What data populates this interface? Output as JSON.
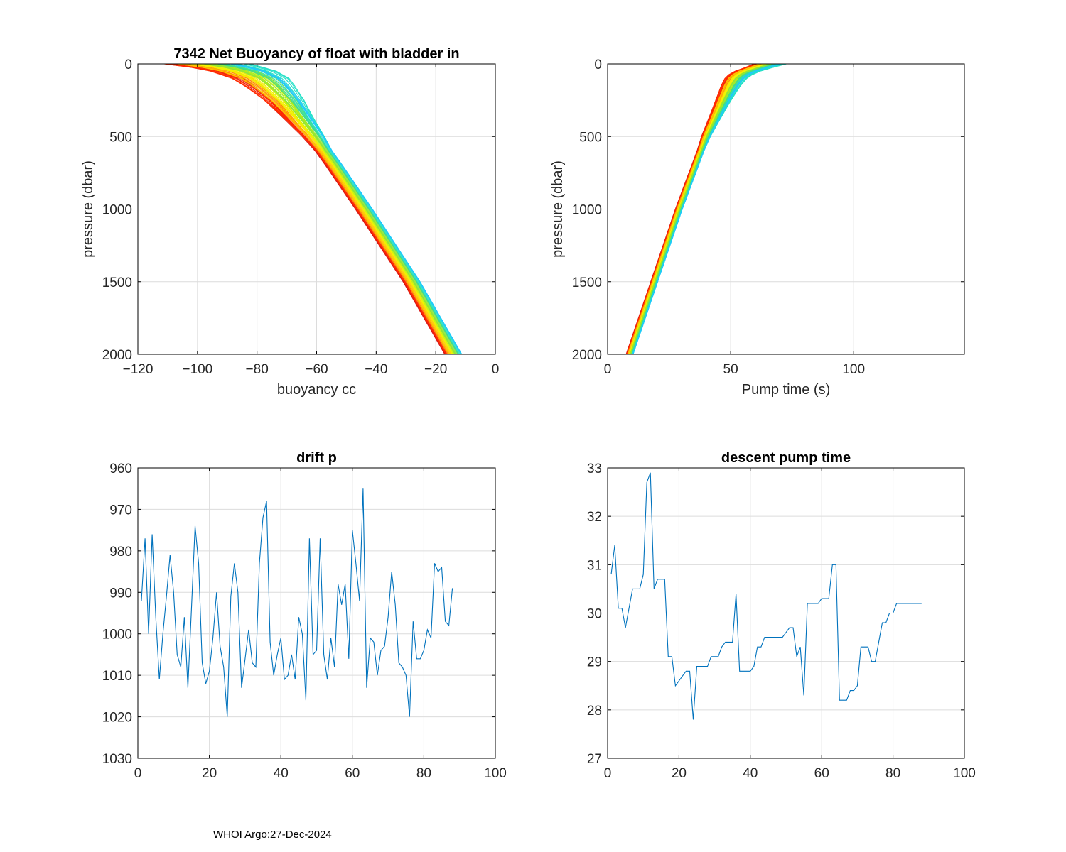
{
  "footer": "WHOI Argo:27-Dec-2024",
  "palette": {
    "trace_colors": [
      "#d40000",
      "#ff2a00",
      "#ff7b00",
      "#ffc400",
      "#f2f200",
      "#c4f000",
      "#8ee63a",
      "#3fdc8e",
      "#23e0c8",
      "#1fc8ff"
    ],
    "series_line": "#0072bd",
    "grid": "#dcdcdc",
    "axis": "#000000"
  },
  "chart_data": [
    {
      "id": "buoyancy",
      "type": "line",
      "title": "7342 Net Buoyancy of float with bladder in",
      "xlabel": "buoyancy cc",
      "ylabel": "pressure (dbar)",
      "xlim": [
        -120,
        0
      ],
      "ylim": [
        0,
        2000
      ],
      "y_reversed": true,
      "x_ticks": [
        -120,
        -100,
        -80,
        -60,
        -40,
        -20,
        0
      ],
      "y_ticks": [
        0,
        500,
        1000,
        1500,
        2000
      ],
      "grid": true,
      "profile_count": 88,
      "pressure": [
        0,
        40,
        100,
        150,
        250,
        350,
        500,
        700,
        1000,
        1500,
        2000
      ],
      "median_profile": [
        -97,
        -86,
        -79,
        -76,
        -71,
        -67,
        -61,
        -54,
        -44,
        -28,
        -14
      ],
      "spread_top": 26,
      "spread_deep": 6
    },
    {
      "id": "pump",
      "type": "line",
      "title": "",
      "xlabel": "Pump time (s)",
      "ylabel": "pressure (dbar)",
      "xlim": [
        0,
        145
      ],
      "ylim": [
        0,
        2000
      ],
      "y_reversed": true,
      "x_ticks": [
        0,
        50,
        100
      ],
      "y_ticks": [
        0,
        500,
        1000,
        1500,
        2000
      ],
      "grid": true,
      "profile_count": 88,
      "pressure": [
        0,
        60,
        100,
        150,
        250,
        500,
        1000,
        1500,
        2000
      ],
      "median_profile": [
        66,
        55,
        52,
        50,
        47,
        40,
        29,
        19,
        9
      ],
      "spread_top": 12,
      "spread_deep": 3
    },
    {
      "id": "drift",
      "type": "line",
      "title": "drift p",
      "xlabel": "",
      "ylabel": "",
      "xlim": [
        0,
        100
      ],
      "ylim": [
        960,
        1030
      ],
      "y_reversed": true,
      "x_ticks": [
        0,
        20,
        40,
        60,
        80,
        100
      ],
      "y_ticks": [
        960,
        970,
        980,
        990,
        1000,
        1010,
        1020,
        1030
      ],
      "grid": true,
      "x": [
        1,
        2,
        3,
        4,
        5,
        6,
        7,
        8,
        9,
        10,
        11,
        12,
        13,
        14,
        15,
        16,
        17,
        18,
        19,
        20,
        21,
        22,
        23,
        24,
        25,
        26,
        27,
        28,
        29,
        30,
        31,
        32,
        33,
        34,
        35,
        36,
        37,
        38,
        39,
        40,
        41,
        42,
        43,
        44,
        45,
        46,
        47,
        48,
        49,
        50,
        51,
        52,
        53,
        54,
        55,
        56,
        57,
        58,
        59,
        60,
        61,
        62,
        63,
        64,
        65,
        66,
        67,
        68,
        69,
        70,
        71,
        72,
        73,
        74,
        75,
        76,
        77,
        78,
        79,
        80,
        81,
        82,
        83,
        84,
        85,
        86,
        87,
        88
      ],
      "y": [
        992,
        977,
        1000,
        976,
        996,
        1011,
        1000,
        991,
        981,
        990,
        1005,
        1008,
        996,
        1013,
        994,
        974,
        983,
        1007,
        1012,
        1009,
        1001,
        990,
        1003,
        1008,
        1020,
        991,
        983,
        990,
        1013,
        1006,
        999,
        1007,
        1008,
        983,
        972,
        968,
        1002,
        1010,
        1005,
        1001,
        1011,
        1010,
        1005,
        1011,
        996,
        1000,
        1016,
        977,
        1005,
        1004,
        977,
        1005,
        1011,
        1001,
        1008,
        988,
        993,
        988,
        1006,
        975,
        983,
        992,
        965,
        1013,
        1001,
        1002,
        1010,
        1004,
        1003,
        996,
        985,
        993,
        1007,
        1008,
        1010,
        1020,
        997,
        1006,
        1006,
        1004,
        999,
        1001,
        983,
        985,
        984,
        997,
        998,
        989
      ]
    },
    {
      "id": "descent",
      "type": "line",
      "title": "descent pump time",
      "xlabel": "",
      "ylabel": "",
      "xlim": [
        0,
        100
      ],
      "ylim": [
        27,
        33
      ],
      "y_reversed": false,
      "x_ticks": [
        0,
        20,
        40,
        60,
        80,
        100
      ],
      "y_ticks": [
        27,
        28,
        29,
        30,
        31,
        32,
        33
      ],
      "grid": true,
      "x": [
        1,
        2,
        3,
        4,
        5,
        6,
        7,
        8,
        9,
        10,
        11,
        12,
        13,
        14,
        15,
        16,
        17,
        18,
        19,
        20,
        21,
        22,
        23,
        24,
        25,
        26,
        27,
        28,
        29,
        30,
        31,
        32,
        33,
        34,
        35,
        36,
        37,
        38,
        39,
        40,
        41,
        42,
        43,
        44,
        45,
        46,
        47,
        48,
        49,
        50,
        51,
        52,
        53,
        54,
        55,
        56,
        57,
        58,
        59,
        60,
        61,
        62,
        63,
        64,
        65,
        66,
        67,
        68,
        69,
        70,
        71,
        72,
        73,
        74,
        75,
        76,
        77,
        78,
        79,
        80,
        81,
        82,
        83,
        84,
        85,
        86,
        87,
        88
      ],
      "y": [
        30.8,
        31.4,
        30.1,
        30.1,
        29.7,
        30.1,
        30.5,
        30.5,
        30.5,
        30.8,
        32.7,
        32.9,
        30.5,
        30.7,
        30.7,
        30.7,
        29.1,
        29.1,
        28.5,
        28.6,
        28.7,
        28.8,
        28.8,
        27.8,
        28.9,
        28.9,
        28.9,
        28.9,
        29.1,
        29.1,
        29.1,
        29.3,
        29.4,
        29.4,
        29.4,
        30.4,
        28.8,
        28.8,
        28.8,
        28.8,
        28.9,
        29.3,
        29.3,
        29.5,
        29.5,
        29.5,
        29.5,
        29.5,
        29.5,
        29.6,
        29.7,
        29.7,
        29.1,
        29.3,
        28.3,
        30.2,
        30.2,
        30.2,
        30.2,
        30.3,
        30.3,
        30.3,
        31.0,
        31.0,
        28.2,
        28.2,
        28.2,
        28.4,
        28.4,
        28.5,
        29.3,
        29.3,
        29.3,
        29.0,
        29.0,
        29.4,
        29.8,
        29.8,
        30.0,
        30.0,
        30.2,
        30.2,
        30.2,
        30.2,
        30.2,
        30.2,
        30.2,
        30.2
      ]
    }
  ]
}
